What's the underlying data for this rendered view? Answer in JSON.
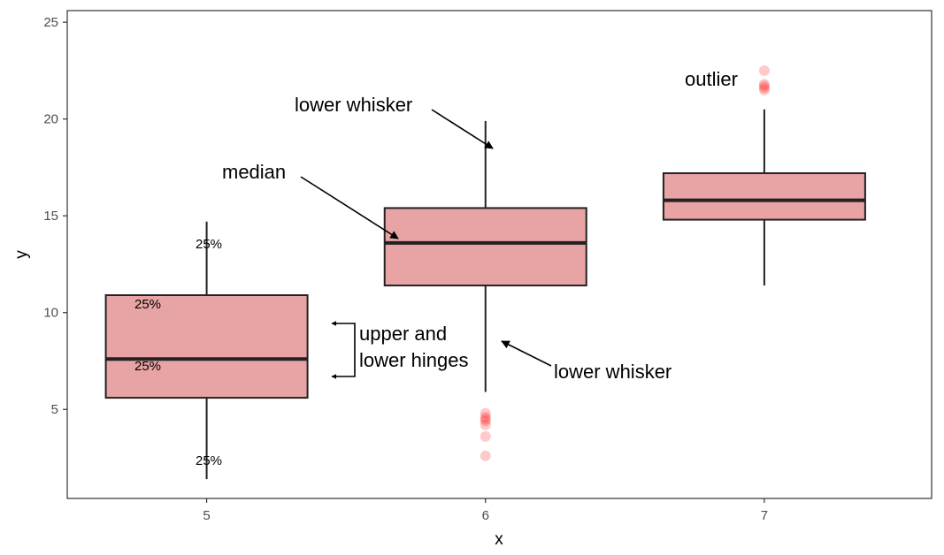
{
  "chart_data": {
    "type": "boxplot",
    "title": "",
    "xlabel": "x",
    "ylabel": "y",
    "xlim": [
      4.5,
      7.6
    ],
    "ylim": [
      0.4,
      25.6
    ],
    "x_ticks": [
      5,
      6,
      7
    ],
    "y_ticks": [
      5,
      10,
      15,
      20,
      25
    ],
    "grid": false,
    "colors": {
      "box_fill": "#e8a3a5",
      "box_stroke": "#222222",
      "outlier": "#ff2a2a"
    },
    "boxes": [
      {
        "x": 5,
        "whisker_low": 1.4,
        "q1": 5.6,
        "median": 7.6,
        "q3": 10.9,
        "whisker_high": 14.7,
        "outliers": []
      },
      {
        "x": 6,
        "whisker_low": 5.9,
        "q1": 11.4,
        "median": 13.6,
        "q3": 15.4,
        "whisker_high": 19.9,
        "outliers": [
          2.6,
          3.6,
          4.2,
          4.4,
          4.5,
          4.6,
          4.8
        ]
      },
      {
        "x": 7,
        "whisker_low": 11.4,
        "q1": 14.8,
        "median": 15.8,
        "q3": 17.2,
        "whisker_high": 20.5,
        "outliers": [
          21.5,
          21.6,
          21.7,
          21.8,
          22.5
        ]
      }
    ],
    "annotations": [
      {
        "text": "lower whisker"
      },
      {
        "text": "median"
      },
      {
        "text": "upper and"
      },
      {
        "text": "lower hinges"
      },
      {
        "text": "lower whisker"
      },
      {
        "text": "outlier"
      }
    ],
    "percent_labels": [
      "25%",
      "25%",
      "25%",
      "25%"
    ]
  }
}
